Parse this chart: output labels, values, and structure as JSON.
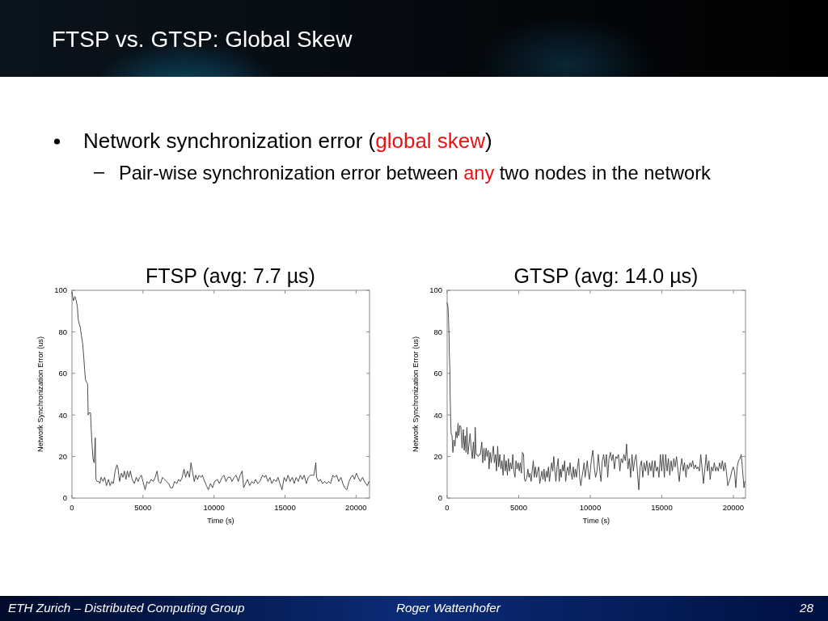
{
  "chart_data": [
    {
      "type": "other",
      "title": "FTSP vs. GTSP: Global Skew",
      "annotations": [
        "Network synchronization error (",
        "global skew",
        ")",
        "Pair-wise synchronization error between ",
        "any",
        " two nodes in the network",
        "ETH Zurich – Distributed Computing Group",
        "Roger Wattenhofer",
        "28"
      ]
    },
    {
      "type": "line",
      "title": "FTSP (avg: 7.7 µs)",
      "xlabel": "Time (s)",
      "ylabel": "Network Synchronization Error (us)",
      "xlim": [
        0,
        20950
      ],
      "ylim": [
        0,
        100
      ],
      "xticks": [
        0,
        5000,
        10000,
        15000,
        20000
      ],
      "yticks": [
        0,
        20,
        40,
        60,
        80,
        100
      ],
      "line_style": "solid",
      "x": [
        0,
        100,
        210,
        300,
        380,
        440,
        510,
        590,
        670,
        760,
        840,
        890,
        950,
        1010,
        1100,
        1140,
        1200,
        1310,
        1350,
        1410,
        1480,
        1560,
        1640,
        1690,
        1770,
        1860,
        1960,
        2050,
        2190,
        2300,
        2430,
        2570,
        2680,
        2810,
        2910,
        3040,
        3160,
        3250,
        3350,
        3480,
        3590,
        3690,
        3800,
        3900,
        4010,
        4110,
        4240,
        4390,
        4530,
        4660,
        4770,
        4890,
        5000,
        5150,
        5290,
        5420,
        5570,
        5720,
        5860,
        5990,
        6100,
        6240,
        6370,
        6520,
        6650,
        6810,
        6940,
        7090,
        7220,
        7380,
        7510,
        7620,
        7760,
        7890,
        8000,
        8140,
        8270,
        8380,
        8480,
        8610,
        8710,
        8840,
        8950,
        9090,
        9180,
        9340,
        9470,
        9600,
        9750,
        9900,
        10040,
        10230,
        10380,
        10570,
        10700,
        10840,
        10990,
        11140,
        11270,
        11410,
        11560,
        11710,
        11840,
        11980,
        12090,
        12220,
        12360,
        12510,
        12660,
        12800,
        12930,
        13080,
        13230,
        13420,
        13560,
        13650,
        13800,
        13940,
        14070,
        14220,
        14370,
        14510,
        14640,
        14790,
        14940,
        15080,
        15210,
        15360,
        15510,
        15650,
        15780,
        15930,
        16080,
        16220,
        16350,
        16500,
        16640,
        16790,
        16920,
        17030,
        17170,
        17220,
        17360,
        17490,
        17640,
        17800,
        17930,
        18060,
        18210,
        18370,
        18500,
        18630,
        18780,
        18940,
        19070,
        19200,
        19350,
        19510,
        19640,
        19770,
        19890,
        20020,
        20150,
        20300,
        20460,
        20590,
        20680,
        20800,
        20910
      ],
      "series": [
        {
          "color": "#3a3a3a",
          "values": [
            99,
            95,
            97,
            95,
            92,
            86,
            84,
            82,
            78,
            74,
            67,
            62,
            57,
            56,
            55,
            40,
            41,
            41,
            34,
            26,
            19,
            17,
            29,
            9,
            8,
            8,
            7,
            10,
            8,
            10,
            6,
            9,
            6,
            8,
            7,
            13,
            16,
            14,
            8,
            12,
            10,
            13,
            9,
            13,
            10,
            13,
            9,
            7,
            10,
            8,
            10,
            11,
            8,
            4,
            8,
            7,
            9,
            8,
            10,
            13,
            8,
            7,
            10,
            9,
            8,
            7,
            5,
            5,
            8,
            7,
            9,
            8,
            10,
            14,
            10,
            13,
            10,
            17,
            13,
            8,
            11,
            9,
            11,
            10,
            11,
            8,
            6,
            4,
            7,
            5,
            8,
            9,
            7,
            10,
            11,
            8,
            10,
            10,
            8,
            10,
            11,
            8,
            11,
            13,
            5,
            7,
            9,
            6,
            8,
            7,
            9,
            7,
            8,
            11,
            10,
            11,
            8,
            10,
            7,
            9,
            8,
            10,
            7,
            4,
            10,
            8,
            11,
            8,
            10,
            7,
            10,
            8,
            11,
            9,
            11,
            7,
            10,
            11,
            11,
            11,
            17,
            10,
            8,
            9,
            7,
            8,
            7,
            8,
            7,
            11,
            10,
            11,
            8,
            10,
            7,
            5,
            4,
            8,
            10,
            11,
            9,
            12,
            10,
            8,
            10,
            8,
            7,
            6,
            8
          ]
        }
      ]
    },
    {
      "type": "line",
      "title": "GTSP (avg: 14.0 µs)",
      "xlabel": "Time (s)",
      "ylabel": "Network Synchronization Error (us)",
      "xlim": [
        0,
        20850
      ],
      "ylim": [
        0,
        100
      ],
      "xticks": [
        0,
        5000,
        10000,
        15000,
        20000
      ],
      "yticks": [
        0,
        20,
        40,
        60,
        80,
        100
      ],
      "line_style": "solid",
      "x": [
        0,
        60,
        90,
        130,
        150,
        190,
        210,
        250,
        280,
        340,
        400,
        470,
        550,
        620,
        700,
        760,
        810,
        890,
        960,
        1040,
        1130,
        1190,
        1260,
        1320,
        1380,
        1450,
        1530,
        1600,
        1680,
        1760,
        1830,
        1910,
        1960,
        2020,
        2090,
        2170,
        2250,
        2320,
        2420,
        2490,
        2570,
        2640,
        2720,
        2790,
        2870,
        2930,
        3000,
        3080,
        3150,
        3230,
        3300,
        3380,
        3450,
        3530,
        3600,
        3680,
        3760,
        3830,
        3910,
        3980,
        4060,
        4130,
        4210,
        4280,
        4360,
        4430,
        4510,
        4590,
        4660,
        4740,
        4810,
        4890,
        4960,
        5040,
        5110,
        5190,
        5260,
        5340,
        5400,
        5470,
        5570,
        5640,
        5720,
        5790,
        5870,
        5940,
        6020,
        6090,
        6170,
        6250,
        6320,
        6400,
        6470,
        6550,
        6620,
        6700,
        6770,
        6850,
        6930,
        7000,
        7080,
        7150,
        7230,
        7300,
        7380,
        7450,
        7530,
        7600,
        7680,
        7760,
        7830,
        7910,
        7980,
        8060,
        8130,
        8210,
        8280,
        8360,
        8430,
        8510,
        8590,
        8660,
        8740,
        8810,
        8890,
        8960,
        9040,
        9110,
        9190,
        9260,
        9340,
        9420,
        9490,
        9570,
        9640,
        9720,
        9790,
        9870,
        9940,
        10090,
        10180,
        10280,
        10370,
        10470,
        10560,
        10650,
        10750,
        10840,
        10940,
        11030,
        11130,
        11220,
        11310,
        11410,
        11500,
        11600,
        11690,
        11790,
        11880,
        11970,
        12070,
        12160,
        12260,
        12350,
        12450,
        12540,
        12630,
        12730,
        12820,
        12920,
        13010,
        13100,
        13200,
        13290,
        13390,
        13480,
        13580,
        13670,
        13760,
        13860,
        13950,
        14050,
        14140,
        14240,
        14330,
        14420,
        14520,
        14610,
        14710,
        14800,
        14900,
        14990,
        15080,
        15180,
        15270,
        15370,
        15460,
        15560,
        15650,
        15740,
        15840,
        15930,
        16030,
        16120,
        16220,
        16310,
        16400,
        16500,
        16590,
        16690,
        16780,
        16870,
        16970,
        17060,
        17160,
        17250,
        17350,
        17440,
        17530,
        17630,
        17720,
        17820,
        17910,
        18010,
        18100,
        18190,
        18290,
        18380,
        18480,
        18570,
        18670,
        18760,
        18850,
        18950,
        19040,
        19140,
        19230,
        19330,
        19420,
        19510,
        19610,
        19700,
        19800,
        19890,
        19990,
        20080,
        20170,
        20270,
        20360,
        20460,
        20550,
        20650,
        20740,
        20800
      ],
      "series": [
        {
          "color": "#3a3a3a",
          "values": [
            94,
            92,
            87,
            79,
            70,
            62,
            49,
            37,
            31,
            30,
            22,
            28,
            25,
            32,
            29,
            36,
            30,
            35,
            34,
            24,
            33,
            23,
            30,
            22,
            34,
            21,
            26,
            31,
            24,
            19,
            27,
            19,
            34,
            21,
            21,
            20,
            21,
            21,
            27,
            17,
            24,
            18,
            24,
            20,
            23,
            14,
            22,
            17,
            21,
            25,
            17,
            21,
            13,
            25,
            15,
            21,
            14,
            18,
            11,
            21,
            13,
            18,
            11,
            19,
            13,
            17,
            14,
            21,
            13,
            10,
            18,
            14,
            17,
            13,
            17,
            12,
            22,
            21,
            9,
            8,
            10,
            14,
            10,
            12,
            8,
            13,
            18,
            10,
            15,
            10,
            13,
            15,
            7,
            10,
            13,
            9,
            14,
            8,
            13,
            10,
            15,
            8,
            13,
            17,
            13,
            20,
            13,
            8,
            15,
            19,
            8,
            14,
            10,
            16,
            13,
            18,
            8,
            13,
            15,
            11,
            17,
            12,
            9,
            15,
            10,
            14,
            10,
            15,
            19,
            10,
            6,
            10,
            13,
            17,
            10,
            14,
            18,
            12,
            9,
            19,
            23,
            15,
            10,
            13,
            21,
            14,
            8,
            18,
            21,
            15,
            21,
            10,
            19,
            22,
            18,
            21,
            14,
            20,
            19,
            21,
            13,
            19,
            17,
            21,
            18,
            26,
            14,
            19,
            10,
            21,
            13,
            18,
            21,
            13,
            4,
            15,
            18,
            10,
            17,
            13,
            18,
            11,
            17,
            13,
            18,
            10,
            18,
            13,
            15,
            10,
            21,
            13,
            21,
            10,
            21,
            13,
            19,
            11,
            18,
            13,
            19,
            15,
            20,
            14,
            8,
            15,
            19,
            13,
            17,
            10,
            16,
            14,
            17,
            15,
            18,
            14,
            16,
            14,
            15,
            13,
            21,
            14,
            7,
            14,
            21,
            13,
            18,
            9,
            15,
            13,
            17,
            13,
            15,
            13,
            17,
            14,
            18,
            13,
            17,
            13,
            6,
            8,
            10,
            13,
            15,
            13,
            5,
            15,
            18,
            19,
            21,
            13,
            5,
            8
          ]
        }
      ]
    }
  ]
}
